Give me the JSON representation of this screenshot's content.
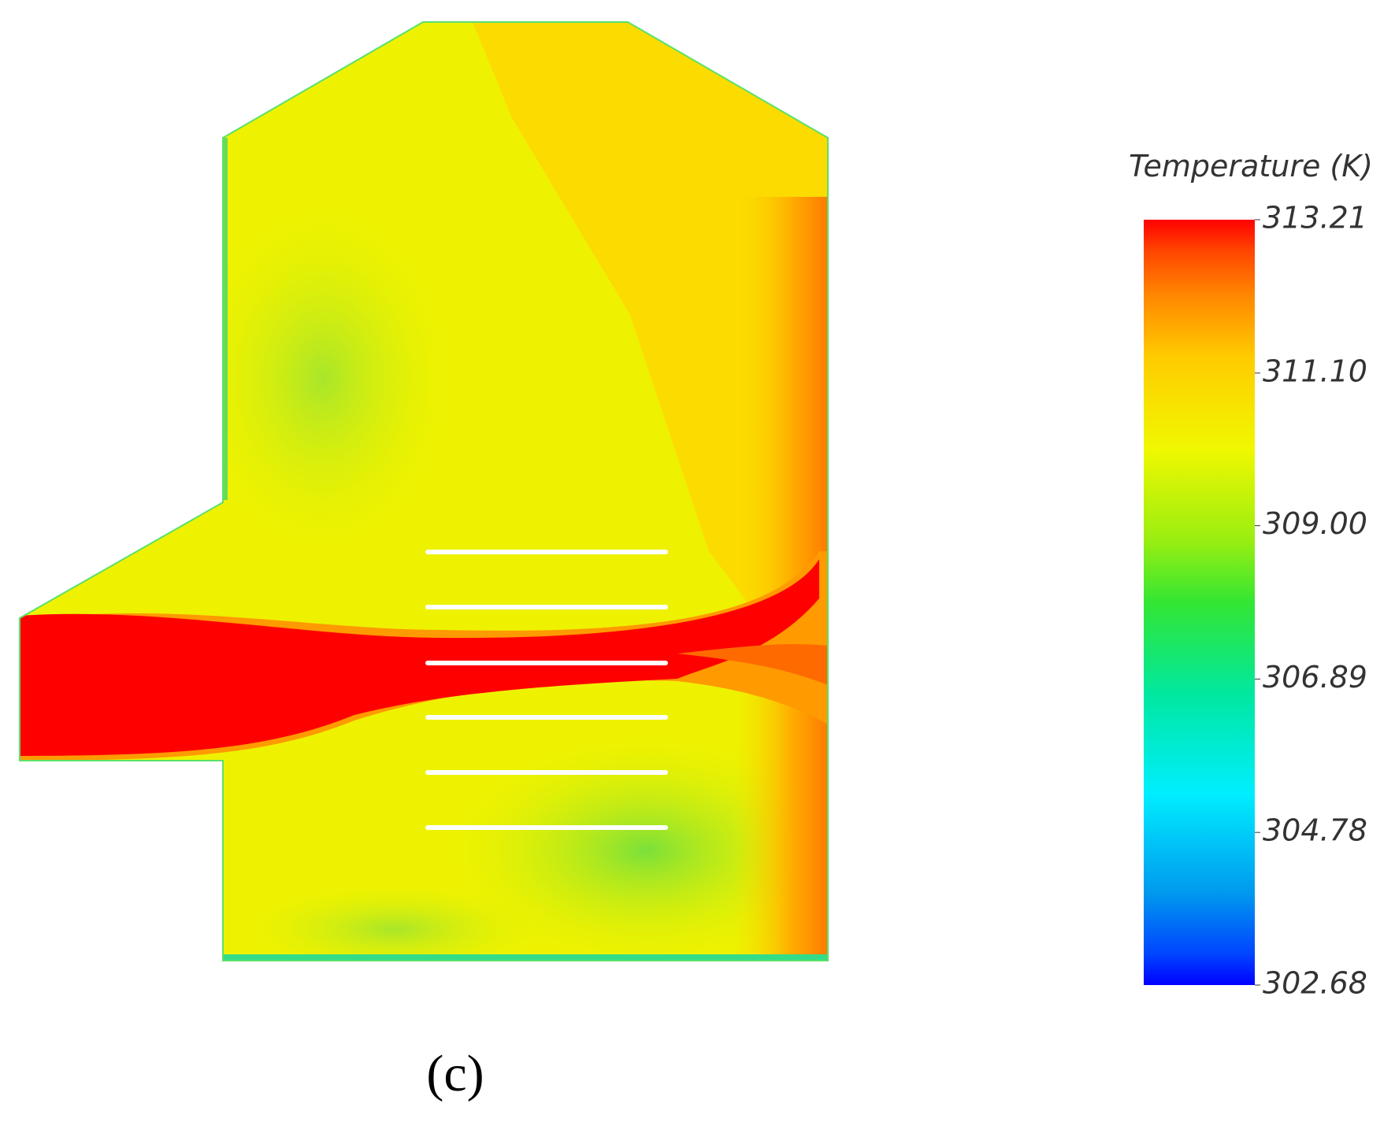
{
  "legend": {
    "title": "Temperature (K)",
    "range": [
      302.68,
      313.21
    ],
    "ticks": [
      {
        "value": 313.21,
        "label": "313.21"
      },
      {
        "value": 311.1,
        "label": "311.10"
      },
      {
        "value": 309,
        "label": "309.00"
      },
      {
        "value": 306.89,
        "label": "306.89"
      },
      {
        "value": 304.78,
        "label": "304.78"
      },
      {
        "value": 302.68,
        "label": "302.68"
      }
    ]
  },
  "caption": "(c)"
}
